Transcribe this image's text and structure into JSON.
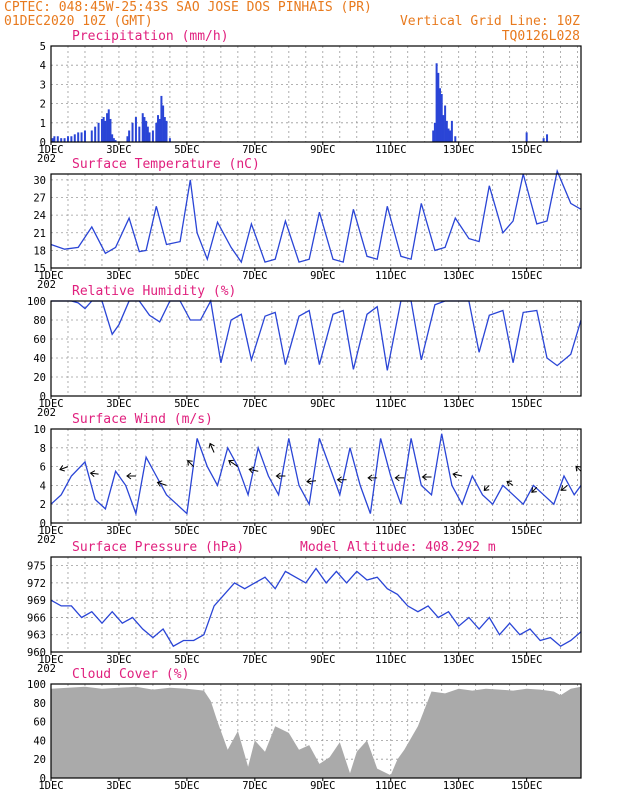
{
  "header": {
    "line1_left": "CPTEC:  048:45W-25:43S  SAO JOSE DOS PINHAIS (PR)",
    "line2_left": "01DEC2020 10Z (GMT)",
    "line2_right": "Vertical Grid Line: 10Z",
    "line3_right": "TQ0126L028"
  },
  "colors": {
    "header": "#e87a1e",
    "title": "#e0207e",
    "series": "#2a45d6",
    "cloud": "#aaaaaa"
  },
  "x_axis": {
    "tick_labels": [
      "1DEC",
      "3DEC",
      "5DEC",
      "7DEC",
      "9DEC",
      "11DEC",
      "13DEC",
      "15DEC"
    ],
    "partial_label": "202"
  },
  "chart_data": [
    {
      "type": "bar",
      "title": "Precipitation (mm/h)",
      "ylim": [
        0,
        5
      ],
      "yticks": [
        "0",
        "1",
        "2",
        "3",
        "4",
        "5"
      ],
      "grid": true,
      "x": [
        0.05,
        0.1,
        0.2,
        0.3,
        0.4,
        0.5,
        0.6,
        0.7,
        0.8,
        0.9,
        1.0,
        1.2,
        1.3,
        1.4,
        1.5,
        1.55,
        1.6,
        1.65,
        1.7,
        1.75,
        1.8,
        1.85,
        1.9,
        2.25,
        2.3,
        2.4,
        2.5,
        2.6,
        2.7,
        2.75,
        2.8,
        2.85,
        2.9,
        3.0,
        3.1,
        3.15,
        3.2,
        3.25,
        3.3,
        3.35,
        3.4,
        3.5,
        11.25,
        11.3,
        11.35,
        11.4,
        11.45,
        11.5,
        11.55,
        11.6,
        11.65,
        11.7,
        11.75,
        11.8,
        11.9,
        14.0,
        14.5,
        14.6
      ],
      "values": [
        0.2,
        0.3,
        0.3,
        0.2,
        0.2,
        0.3,
        0.3,
        0.4,
        0.5,
        0.5,
        0.6,
        0.6,
        0.8,
        1.0,
        1.2,
        1.3,
        1.1,
        1.5,
        1.7,
        1.2,
        0.4,
        0.2,
        0.1,
        0.3,
        0.6,
        1.0,
        1.3,
        0.8,
        1.5,
        1.3,
        1.1,
        0.8,
        0.5,
        0.6,
        1.0,
        1.4,
        1.2,
        2.4,
        1.9,
        1.3,
        1.1,
        0.2,
        0.6,
        1.0,
        4.1,
        3.6,
        2.8,
        2.5,
        1.4,
        1.9,
        1.1,
        0.7,
        0.6,
        1.1,
        0.3,
        0.5,
        0.2,
        0.4
      ]
    },
    {
      "type": "line",
      "title": "Surface Temperature (nC)",
      "ylim": [
        15,
        31
      ],
      "yticks": [
        "15",
        "18",
        "21",
        "24",
        "27",
        "30"
      ],
      "grid": true,
      "x": [
        0,
        0.4,
        0.8,
        1.2,
        1.6,
        1.9,
        2.3,
        2.6,
        2.8,
        3.1,
        3.4,
        3.8,
        4.1,
        4.3,
        4.6,
        4.9,
        5.3,
        5.6,
        5.9,
        6.3,
        6.6,
        6.9,
        7.3,
        7.6,
        7.9,
        8.3,
        8.6,
        8.9,
        9.3,
        9.6,
        9.9,
        10.3,
        10.6,
        10.9,
        11.3,
        11.6,
        11.9,
        12.3,
        12.6,
        12.9,
        13.3,
        13.6,
        13.9,
        14.3,
        14.6,
        14.9,
        15.3,
        15.6
      ],
      "values": [
        19,
        18.2,
        18.5,
        22,
        17.5,
        18.5,
        23.5,
        17.8,
        18,
        25.5,
        19,
        19.5,
        30,
        21,
        16.5,
        22.8,
        18.5,
        16,
        22.5,
        16,
        16.5,
        23,
        16,
        16.5,
        24.5,
        16.5,
        16,
        25,
        17,
        16.5,
        25.5,
        17,
        16.5,
        26,
        18,
        18.5,
        23.5,
        20,
        19.5,
        29,
        21,
        23,
        31,
        22.5,
        23,
        31.5,
        26,
        25
      ]
    },
    {
      "type": "line",
      "title": "Relative Humidity (%)",
      "ylim": [
        0,
        100
      ],
      "yticks": [
        "0",
        "20",
        "40",
        "60",
        "80",
        "100"
      ],
      "grid": true,
      "x": [
        0,
        0.6,
        0.8,
        1.0,
        1.2,
        1.5,
        1.8,
        2.0,
        2.3,
        2.6,
        2.9,
        3.2,
        3.5,
        3.8,
        4.1,
        4.4,
        4.7,
        5.0,
        5.3,
        5.6,
        5.9,
        6.3,
        6.6,
        6.9,
        7.3,
        7.6,
        7.9,
        8.3,
        8.6,
        8.9,
        9.3,
        9.6,
        9.9,
        10.3,
        10.6,
        10.9,
        11.3,
        11.6,
        11.9,
        12.3,
        12.6,
        12.9,
        13.3,
        13.6,
        13.9,
        14.3,
        14.6,
        14.9,
        15.3,
        15.6
      ],
      "values": [
        100,
        100,
        98,
        92,
        100,
        100,
        65,
        75,
        100,
        100,
        85,
        78,
        100,
        100,
        80,
        80,
        100,
        35,
        80,
        86,
        38,
        84,
        88,
        33,
        84,
        90,
        33,
        86,
        90,
        28,
        86,
        94,
        27,
        100,
        100,
        38,
        96,
        100,
        100,
        100,
        46,
        85,
        90,
        35,
        88,
        90,
        40,
        32,
        44,
        80
      ]
    },
    {
      "type": "line",
      "title": "Surface Wind (m/s)",
      "ylim": [
        0,
        10
      ],
      "yticks": [
        "0",
        "2",
        "4",
        "6",
        "8",
        "10"
      ],
      "grid": true,
      "x": [
        0,
        0.3,
        0.6,
        1.0,
        1.3,
        1.6,
        1.9,
        2.2,
        2.5,
        2.8,
        3.1,
        3.4,
        3.7,
        4.0,
        4.3,
        4.6,
        4.9,
        5.2,
        5.5,
        5.8,
        6.1,
        6.4,
        6.7,
        7.0,
        7.3,
        7.6,
        7.9,
        8.2,
        8.5,
        8.8,
        9.1,
        9.4,
        9.7,
        10.0,
        10.3,
        10.6,
        10.9,
        11.2,
        11.5,
        11.8,
        12.1,
        12.4,
        12.7,
        13.0,
        13.3,
        13.6,
        13.9,
        14.2,
        14.5,
        14.8,
        15.1,
        15.4,
        15.6
      ],
      "values": [
        2,
        3,
        5,
        6.5,
        2.5,
        1.5,
        5.5,
        4,
        1,
        7,
        5,
        3,
        2,
        1,
        9,
        6,
        4,
        8,
        6,
        3,
        8,
        5,
        3,
        9,
        4,
        2,
        9,
        6,
        3,
        8,
        4,
        1,
        9,
        5,
        2,
        9,
        4,
        3,
        9.5,
        4,
        2,
        5,
        3,
        2,
        4,
        3,
        2,
        4,
        3,
        2,
        5,
        3,
        4
      ],
      "arrows": [
        {
          "x": 0.5,
          "y": 6,
          "dx": -8,
          "dy": 3
        },
        {
          "x": 1.4,
          "y": 5.2,
          "dx": -8,
          "dy": -1
        },
        {
          "x": 2.5,
          "y": 5,
          "dx": -9,
          "dy": 0
        },
        {
          "x": 3.4,
          "y": 4,
          "dx": -9,
          "dy": -3
        },
        {
          "x": 4.2,
          "y": 6,
          "dx": -6,
          "dy": -6
        },
        {
          "x": 4.8,
          "y": 7.5,
          "dx": -4,
          "dy": -9
        },
        {
          "x": 5.5,
          "y": 6,
          "dx": -9,
          "dy": -6
        },
        {
          "x": 6.1,
          "y": 5.5,
          "dx": -9,
          "dy": -2
        },
        {
          "x": 6.9,
          "y": 5,
          "dx": -9,
          "dy": 0
        },
        {
          "x": 7.8,
          "y": 4.5,
          "dx": -9,
          "dy": 1
        },
        {
          "x": 8.7,
          "y": 4.6,
          "dx": -9,
          "dy": 0
        },
        {
          "x": 9.6,
          "y": 4.8,
          "dx": -9,
          "dy": 0
        },
        {
          "x": 10.4,
          "y": 4.8,
          "dx": -9,
          "dy": 0
        },
        {
          "x": 11.2,
          "y": 4.9,
          "dx": -9,
          "dy": 0
        },
        {
          "x": 12.1,
          "y": 5,
          "dx": -9,
          "dy": -2
        },
        {
          "x": 12.9,
          "y": 4,
          "dx": -5,
          "dy": 5
        },
        {
          "x": 13.6,
          "y": 4,
          "dx": -6,
          "dy": -4
        },
        {
          "x": 14.3,
          "y": 3.8,
          "dx": -5,
          "dy": 5
        },
        {
          "x": 15.2,
          "y": 4,
          "dx": -6,
          "dy": 5
        },
        {
          "x": 15.6,
          "y": 5.5,
          "dx": -5,
          "dy": -5
        }
      ]
    },
    {
      "type": "line",
      "title": "Surface Pressure (hPa)",
      "annotation": "Model Altitude: 408.292 m",
      "ylim": [
        960,
        976.5
      ],
      "yticks": [
        "960",
        "963",
        "966",
        "969",
        "972",
        "975"
      ],
      "grid": true,
      "x": [
        0,
        0.3,
        0.6,
        0.9,
        1.2,
        1.5,
        1.8,
        2.1,
        2.4,
        2.7,
        3.0,
        3.3,
        3.6,
        3.9,
        4.2,
        4.5,
        4.8,
        5.1,
        5.4,
        5.7,
        6.0,
        6.3,
        6.6,
        6.9,
        7.2,
        7.5,
        7.8,
        8.1,
        8.4,
        8.7,
        9.0,
        9.3,
        9.6,
        9.9,
        10.2,
        10.5,
        10.8,
        11.1,
        11.4,
        11.7,
        12.0,
        12.3,
        12.6,
        12.9,
        13.2,
        13.5,
        13.8,
        14.1,
        14.4,
        14.7,
        15.0,
        15.3,
        15.6
      ],
      "values": [
        969,
        968,
        968,
        966,
        967,
        965,
        967,
        965,
        966,
        964,
        962.5,
        964,
        961,
        962,
        962,
        963,
        968,
        970,
        972,
        971,
        972,
        973,
        971,
        974,
        973,
        972,
        974.5,
        972,
        974,
        972,
        974,
        972.5,
        973,
        971,
        970,
        968,
        967,
        968,
        966,
        967,
        964.5,
        966,
        964,
        966,
        963,
        965,
        963,
        964,
        962,
        962.5,
        961,
        962,
        963.5
      ]
    },
    {
      "type": "area",
      "title": "Cloud Cover (%)",
      "ylim": [
        0,
        100
      ],
      "yticks": [
        "0",
        "20",
        "40",
        "60",
        "80",
        "100"
      ],
      "grid": true,
      "x": [
        0,
        0.5,
        1.0,
        1.5,
        2.0,
        2.5,
        3.0,
        3.5,
        4.0,
        4.5,
        4.7,
        4.9,
        5.2,
        5.5,
        5.8,
        6.0,
        6.3,
        6.6,
        7.0,
        7.3,
        7.6,
        7.9,
        8.2,
        8.5,
        8.8,
        9.0,
        9.3,
        9.6,
        10.0,
        10.2,
        10.4,
        10.8,
        11.2,
        11.6,
        12.0,
        12.4,
        12.8,
        13.2,
        13.6,
        14.0,
        14.4,
        14.8,
        15.0,
        15.3,
        15.6
      ],
      "values": [
        95,
        96,
        97,
        95,
        96,
        97,
        94,
        96,
        95,
        93,
        82,
        60,
        30,
        50,
        12,
        40,
        28,
        55,
        48,
        30,
        35,
        15,
        22,
        38,
        5,
        28,
        40,
        10,
        3,
        20,
        30,
        55,
        92,
        90,
        95,
        93,
        95,
        94,
        93,
        95,
        94,
        92,
        88,
        95,
        97
      ]
    }
  ]
}
